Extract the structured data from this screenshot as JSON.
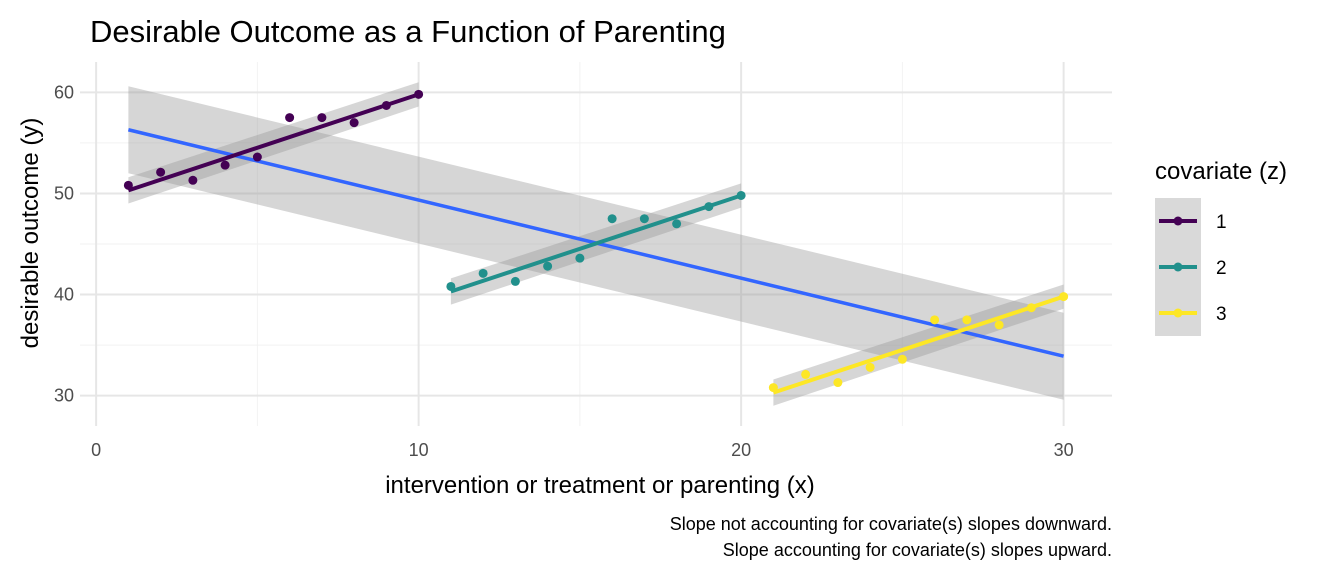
{
  "chart_data": {
    "type": "scatter",
    "title": "Desirable Outcome as a Function of Parenting",
    "xlabel": "intervention or treatment or parenting (x)",
    "ylabel": "desirable outcome (y)",
    "xlim": [
      -0.5,
      31.5
    ],
    "ylim": [
      27,
      63
    ],
    "x_ticks": [
      0,
      10,
      20,
      30
    ],
    "y_ticks": [
      30,
      40,
      50,
      60
    ],
    "grid": true,
    "legend": {
      "title": "covariate (z)",
      "placement": "right",
      "entries": [
        "1",
        "2",
        "3"
      ]
    },
    "series": [
      {
        "name": "1",
        "color": "#440154",
        "x": [
          1,
          2,
          3,
          4,
          5,
          6,
          7,
          8,
          9,
          10
        ],
        "y": [
          50.8,
          52.1,
          51.3,
          52.8,
          53.6,
          57.5,
          57.5,
          57.0,
          58.7,
          59.8
        ],
        "fit": {
          "x": [
            1,
            10
          ],
          "y": [
            50.3,
            59.8
          ],
          "ci": [
            [
              49.0,
              51.6
            ],
            [
              58.6,
              61.0
            ]
          ]
        }
      },
      {
        "name": "2",
        "color": "#21908C",
        "x": [
          11,
          12,
          13,
          14,
          15,
          16,
          17,
          18,
          19,
          20
        ],
        "y": [
          40.8,
          42.1,
          41.3,
          42.8,
          43.6,
          47.5,
          47.5,
          47.0,
          48.7,
          49.8
        ],
        "fit": {
          "x": [
            11,
            20
          ],
          "y": [
            40.3,
            49.8
          ],
          "ci": [
            [
              39.0,
              41.6
            ],
            [
              48.6,
              51.0
            ]
          ]
        }
      },
      {
        "name": "3",
        "color": "#FDE725",
        "x": [
          21,
          22,
          23,
          24,
          25,
          26,
          27,
          28,
          29,
          30
        ],
        "y": [
          30.8,
          32.1,
          31.3,
          32.8,
          33.6,
          37.5,
          37.5,
          37.0,
          38.7,
          39.8
        ],
        "fit": {
          "x": [
            21,
            30
          ],
          "y": [
            30.3,
            39.8
          ],
          "ci": [
            [
              29.0,
              31.6
            ],
            [
              38.6,
              41.0
            ]
          ]
        }
      }
    ],
    "overall_fit": {
      "color": "#3366FF",
      "x": [
        1,
        30
      ],
      "y": [
        56.3,
        33.9
      ],
      "ci": [
        [
          52.0,
          60.6
        ],
        [
          29.6,
          38.2
        ]
      ]
    },
    "caption": [
      "Slope not accounting for covariate(s) slopes downward.",
      "Slope accounting for covariate(s) slopes upward."
    ]
  }
}
